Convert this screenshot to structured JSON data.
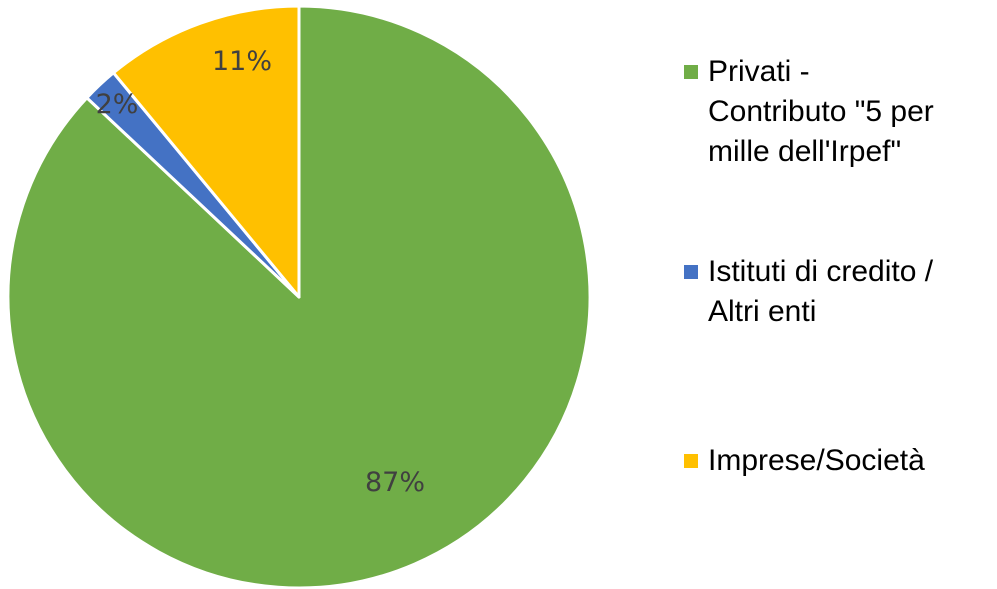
{
  "chart_data": {
    "type": "pie",
    "title": "",
    "start_angle_deg": 0,
    "direction": "clockwise",
    "slices": [
      {
        "label": "Privati - Contributo \"5 per mille dell'Irpef\"",
        "value": 87,
        "display": "87%",
        "color": "#70AD47"
      },
      {
        "label": "Istituti di credito / Altri enti",
        "value": 2,
        "display": "2%",
        "color": "#4472C4"
      },
      {
        "label": "Imprese/Società",
        "value": 11,
        "display": "11%",
        "color": "#FFC000"
      }
    ],
    "legend": {
      "position": "right",
      "items": [
        {
          "lines": [
            "Privati -",
            "Contributo \"5 per",
            "mille dell'Irpef\""
          ]
        },
        {
          "lines": [
            "Istituti di credito /",
            "Altri enti"
          ]
        },
        {
          "lines": [
            "Imprese/Società"
          ]
        }
      ]
    }
  }
}
